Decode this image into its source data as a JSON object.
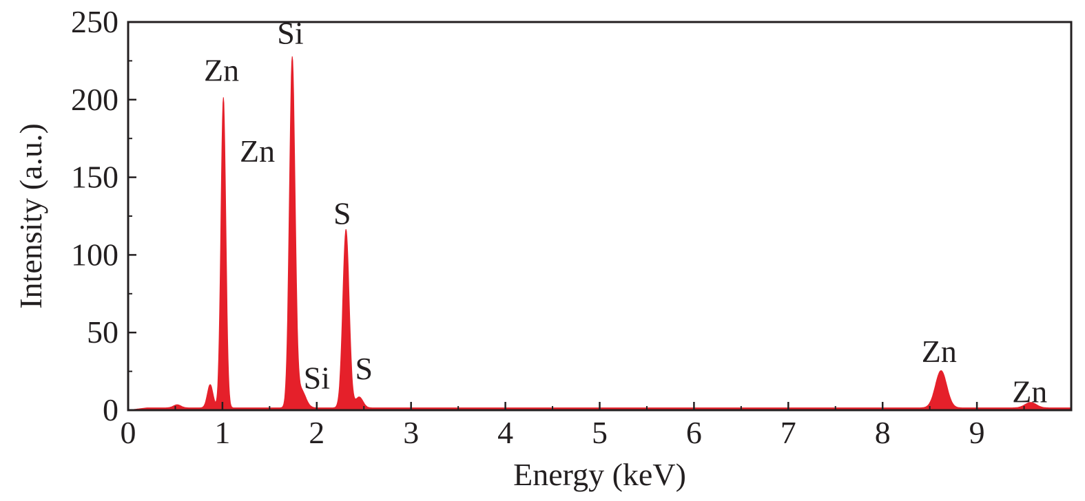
{
  "chart_data": {
    "type": "area",
    "xlabel": "Energy (keV)",
    "ylabel": "Intensity (a.u.)",
    "xlim": [
      0,
      10
    ],
    "ylim": [
      0,
      250
    ],
    "x_ticks": [
      "0",
      "1",
      "2",
      "3",
      "4",
      "5",
      "6",
      "7",
      "8",
      "9"
    ],
    "y_ticks": [
      "0",
      "50",
      "100",
      "150",
      "200",
      "250"
    ],
    "grid": false,
    "legend": "none",
    "fill_color": "#e5202a",
    "background_level": 1.5,
    "peaks": [
      {
        "x": 0.52,
        "height": 2,
        "width": 0.04
      },
      {
        "x": 0.87,
        "height": 15,
        "width": 0.03
      },
      {
        "x": 1.01,
        "height": 200,
        "width": 0.026
      },
      {
        "x": 1.74,
        "height": 224,
        "width": 0.03
      },
      {
        "x": 1.83,
        "height": 12,
        "width": 0.05
      },
      {
        "x": 2.31,
        "height": 115,
        "width": 0.034
      },
      {
        "x": 2.45,
        "height": 7,
        "width": 0.04
      },
      {
        "x": 8.62,
        "height": 24,
        "width": 0.06
      },
      {
        "x": 9.57,
        "height": 3.5,
        "width": 0.06
      }
    ],
    "annotations": [
      {
        "text": "Zn",
        "x": 0.99,
        "y": 212
      },
      {
        "text": "Zn",
        "x": 1.37,
        "y": 160
      },
      {
        "text": "Si",
        "x": 1.72,
        "y": 236
      },
      {
        "text": "S",
        "x": 2.27,
        "y": 120
      },
      {
        "text": "Si",
        "x": 2.0,
        "y": 14
      },
      {
        "text": "S",
        "x": 2.5,
        "y": 20
      },
      {
        "text": "Zn",
        "x": 8.6,
        "y": 31
      },
      {
        "text": "Zn",
        "x": 9.56,
        "y": 5
      }
    ]
  }
}
